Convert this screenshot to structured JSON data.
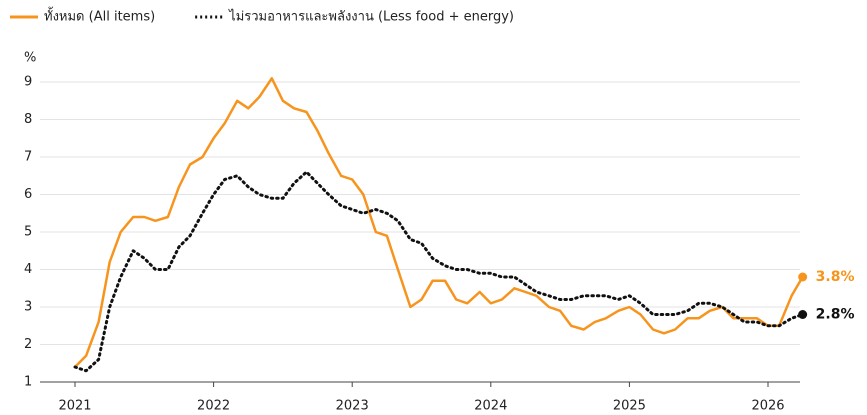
{
  "chart_data": {
    "type": "line",
    "y_label": "%",
    "x": [
      2021,
      2021.08,
      2021.17,
      2021.25,
      2021.33,
      2021.42,
      2021.5,
      2021.58,
      2021.67,
      2021.75,
      2021.83,
      2021.92,
      2022,
      2022.08,
      2022.17,
      2022.25,
      2022.33,
      2022.42,
      2022.5,
      2022.58,
      2022.67,
      2022.75,
      2022.83,
      2022.92,
      2023,
      2023.08,
      2023.17,
      2023.25,
      2023.33,
      2023.42,
      2023.5,
      2023.58,
      2023.67,
      2023.75,
      2023.83,
      2023.92,
      2024,
      2024.08,
      2024.17,
      2024.25,
      2024.33,
      2024.42,
      2024.5,
      2024.58,
      2024.67,
      2024.75,
      2024.83,
      2024.92,
      2025,
      2025.08,
      2025.17,
      2025.25,
      2025.33,
      2025.42,
      2025.5,
      2025.58,
      2025.67,
      2025.75,
      2025.83,
      2025.92,
      2026,
      2026.08,
      2026.17,
      2026.25
    ],
    "series": [
      {
        "name": "ทั้งหมด (All items)",
        "color": "#f7941d",
        "dash": false,
        "values": [
          1.4,
          1.7,
          2.6,
          4.2,
          5.0,
          5.4,
          5.4,
          5.3,
          5.4,
          6.2,
          6.8,
          7.0,
          7.5,
          7.9,
          8.5,
          8.3,
          8.6,
          9.1,
          8.5,
          8.3,
          8.2,
          7.7,
          7.1,
          6.5,
          6.4,
          6.0,
          5.0,
          4.9,
          4.0,
          3.0,
          3.2,
          3.7,
          3.7,
          3.2,
          3.1,
          3.4,
          3.1,
          3.2,
          3.5,
          3.4,
          3.3,
          3.0,
          2.9,
          2.5,
          2.4,
          2.6,
          2.7,
          2.9,
          3.0,
          2.8,
          2.4,
          2.3,
          2.4,
          2.7,
          2.7,
          2.9,
          3.0,
          2.7,
          2.7,
          2.7,
          2.5,
          2.5,
          3.3,
          3.8
        ],
        "value_labels": [
          null,
          null,
          null,
          null,
          null,
          null,
          null,
          null,
          null,
          null,
          null,
          null,
          null,
          null,
          null,
          null,
          null,
          null,
          null,
          null,
          null,
          null,
          null,
          null,
          null,
          null,
          null,
          null,
          null,
          null,
          null,
          null,
          null,
          null,
          null,
          null,
          null,
          null,
          null,
          null,
          null,
          null,
          null,
          null,
          null,
          null,
          null,
          null,
          null,
          null,
          null,
          null,
          null,
          null,
          null,
          null,
          null,
          null,
          null,
          null,
          null,
          null,
          null,
          "3.8%"
        ]
      },
      {
        "name": "ไม่รวมอาหารและพลังงาน (Less food + energy)",
        "color": "#111111",
        "dash": true,
        "values": [
          1.4,
          1.3,
          1.6,
          3.0,
          3.8,
          4.5,
          4.3,
          4.0,
          4.0,
          4.6,
          4.9,
          5.5,
          6.0,
          6.4,
          6.5,
          6.2,
          6.0,
          5.9,
          5.9,
          6.3,
          6.6,
          6.3,
          6.0,
          5.7,
          5.6,
          5.5,
          5.6,
          5.5,
          5.3,
          4.8,
          4.7,
          4.3,
          4.1,
          4.0,
          4.0,
          3.9,
          3.9,
          3.8,
          3.8,
          3.6,
          3.4,
          3.3,
          3.2,
          3.2,
          3.3,
          3.3,
          3.3,
          3.2,
          3.3,
          3.1,
          2.8,
          2.8,
          2.8,
          2.9,
          3.1,
          3.1,
          3.0,
          2.8,
          2.6,
          2.6,
          2.5,
          2.5,
          2.7,
          2.8
        ],
        "value_labels": [
          null,
          null,
          null,
          null,
          null,
          null,
          null,
          null,
          null,
          null,
          null,
          null,
          null,
          null,
          null,
          null,
          null,
          null,
          null,
          null,
          null,
          null,
          null,
          null,
          null,
          null,
          null,
          null,
          null,
          null,
          null,
          null,
          null,
          null,
          null,
          null,
          null,
          null,
          null,
          null,
          null,
          null,
          null,
          null,
          null,
          null,
          null,
          null,
          null,
          null,
          null,
          null,
          null,
          null,
          null,
          null,
          null,
          null,
          null,
          null,
          null,
          null,
          null,
          "2.8%"
        ]
      }
    ],
    "xlim": [
      2021,
      2026
    ],
    "xticks": [
      2021,
      2022,
      2023,
      2024,
      2025,
      2026
    ],
    "ylim": [
      1,
      9
    ],
    "yticks": [
      1,
      2,
      3,
      4,
      5,
      6,
      7,
      8,
      9
    ],
    "grid": true
  }
}
